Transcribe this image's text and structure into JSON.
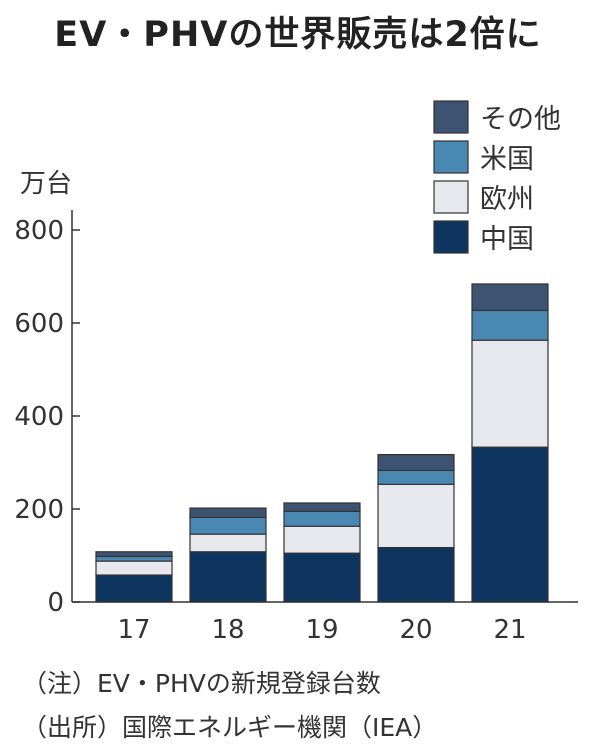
{
  "chart_data": {
    "type": "bar",
    "stacked": true,
    "title": "EV・PHVの世界販売は2倍に",
    "ylabel": "万台",
    "xlabel": "",
    "ylim": [
      0,
      800
    ],
    "yticks": [
      0,
      200,
      400,
      600,
      800
    ],
    "categories": [
      "17",
      "18",
      "19",
      "20",
      "21"
    ],
    "series": [
      {
        "name": "中国",
        "color": "#0d3560",
        "values": [
          58,
          108,
          105,
          117,
          333
        ]
      },
      {
        "name": "欧州",
        "color": "#e7e8ed",
        "values": [
          30,
          38,
          58,
          136,
          230
        ]
      },
      {
        "name": "米国",
        "color": "#4a88b4",
        "values": [
          10,
          36,
          32,
          30,
          64
        ]
      },
      {
        "name": "その他",
        "color": "#3e5271",
        "values": [
          10,
          20,
          18,
          34,
          57
        ]
      }
    ],
    "legend_order": [
      "その他",
      "米国",
      "欧州",
      "中国"
    ],
    "legend_position": "top-right",
    "grid": false
  },
  "notes": {
    "note1": "（注）EV・PHVの新規登録台数",
    "note2": "（出所）国際エネルギー機関（IEA）"
  }
}
